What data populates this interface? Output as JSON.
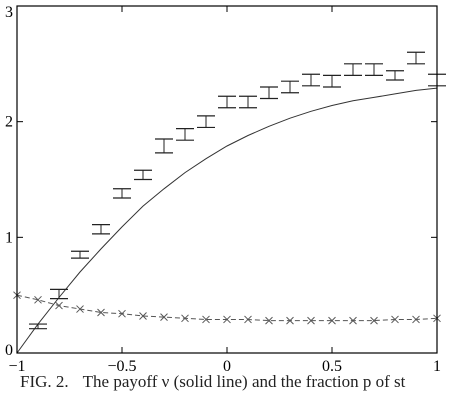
{
  "chart_data": {
    "type": "line",
    "xlim": [
      -1,
      1
    ],
    "ylim": [
      0,
      3
    ],
    "x_ticks": [
      -1,
      -0.5,
      0,
      0.5,
      1
    ],
    "x_tick_labels": [
      "−1",
      "−0.5",
      "0",
      "0.5",
      "1"
    ],
    "y_ticks": [
      0,
      1,
      2,
      3
    ],
    "y_tick_labels": [
      "0",
      "1",
      "2",
      "3"
    ],
    "grid": false,
    "series": [
      {
        "style": "solid",
        "x": [
          -1.0,
          -0.9,
          -0.8,
          -0.7,
          -0.6,
          -0.5,
          -0.4,
          -0.3,
          -0.2,
          -0.1,
          0.0,
          0.1,
          0.2,
          0.3,
          0.4,
          0.5,
          0.6,
          0.7,
          0.8,
          0.9,
          1.0
        ],
        "y": [
          0.0,
          0.25,
          0.48,
          0.7,
          0.9,
          1.09,
          1.27,
          1.42,
          1.56,
          1.68,
          1.79,
          1.88,
          1.96,
          2.03,
          2.09,
          2.14,
          2.18,
          2.21,
          2.24,
          2.27,
          2.29
        ]
      },
      {
        "style": "dashed-cross",
        "x": [
          -1.0,
          -0.9,
          -0.8,
          -0.7,
          -0.6,
          -0.5,
          -0.4,
          -0.3,
          -0.2,
          -0.1,
          0.0,
          0.1,
          0.2,
          0.3,
          0.4,
          0.5,
          0.6,
          0.7,
          0.8,
          0.9,
          1.0
        ],
        "y": [
          0.5,
          0.46,
          0.41,
          0.38,
          0.35,
          0.34,
          0.32,
          0.31,
          0.3,
          0.29,
          0.29,
          0.29,
          0.28,
          0.28,
          0.28,
          0.28,
          0.28,
          0.28,
          0.29,
          0.29,
          0.3
        ]
      },
      {
        "style": "errorbar",
        "x": [
          -0.9,
          -0.8,
          -0.7,
          -0.6,
          -0.5,
          -0.4,
          -0.3,
          -0.2,
          -0.1,
          0.0,
          0.1,
          0.2,
          0.3,
          0.4,
          0.5,
          0.6,
          0.7,
          0.8,
          0.9,
          1.0
        ],
        "y": [
          0.23,
          0.51,
          0.85,
          1.07,
          1.38,
          1.54,
          1.79,
          1.89,
          2.0,
          2.17,
          2.17,
          2.25,
          2.3,
          2.36,
          2.35,
          2.45,
          2.45,
          2.4,
          2.55,
          2.36
        ],
        "err": [
          0.02,
          0.04,
          0.03,
          0.04,
          0.04,
          0.04,
          0.06,
          0.05,
          0.05,
          0.05,
          0.05,
          0.05,
          0.05,
          0.05,
          0.05,
          0.05,
          0.05,
          0.04,
          0.05,
          0.05
        ]
      }
    ]
  },
  "caption": {
    "label": "FIG. 2.",
    "text": "The payoff ν (solid line) and the fraction p of st",
    "line2": "..."
  },
  "colors": {
    "axis": "#000000",
    "solid": "#333333",
    "dashed": "#555555",
    "errorbar": "#222222"
  }
}
